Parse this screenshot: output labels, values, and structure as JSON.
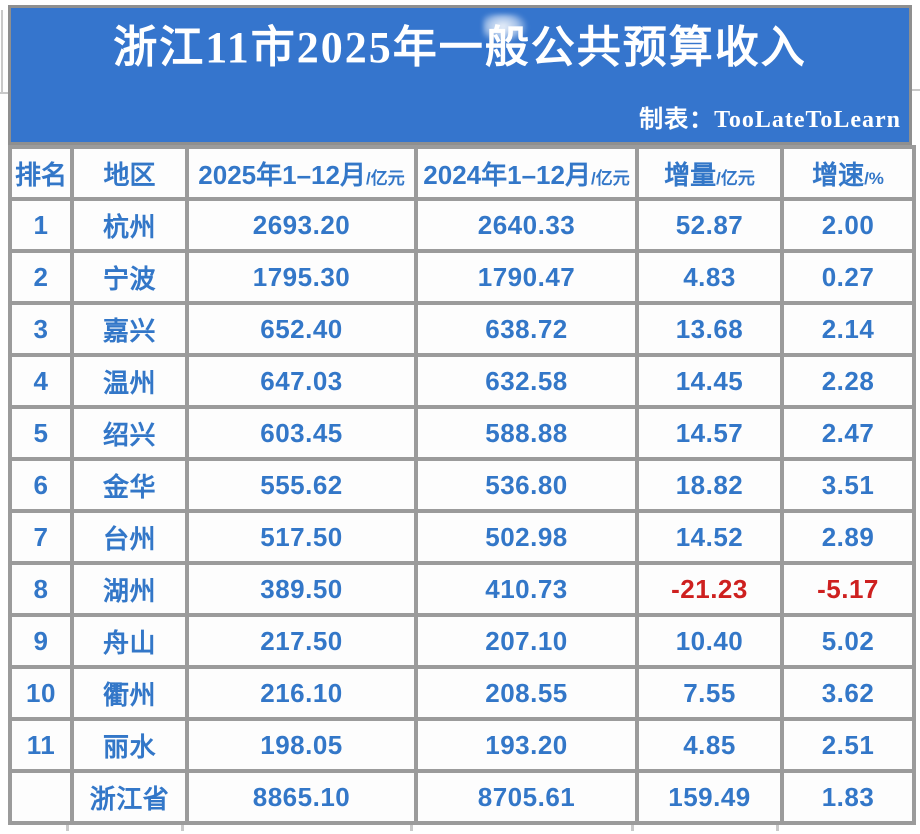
{
  "banner": {
    "title_prefix": "浙江11市2025年一",
    "title_smudged_char": "般",
    "title_suffix": "公共预算收入",
    "title_full": "浙江11市2025年一般公共预算收入",
    "credit": "制表：TooLateToLearn"
  },
  "table": {
    "columns": [
      {
        "label": "排名",
        "unit": ""
      },
      {
        "label": "地区",
        "unit": ""
      },
      {
        "label": "2025年1–12月",
        "unit": "/亿元"
      },
      {
        "label": "2024年1–12月",
        "unit": "/亿元"
      },
      {
        "label": "增量",
        "unit": "/亿元"
      },
      {
        "label": "增速",
        "unit": "/%"
      }
    ],
    "rows": [
      {
        "rank": "1",
        "region": "杭州",
        "v2025": "2693.20",
        "v2024": "2640.33",
        "delta": "52.87",
        "growth": "2.00"
      },
      {
        "rank": "2",
        "region": "宁波",
        "v2025": "1795.30",
        "v2024": "1790.47",
        "delta": "4.83",
        "growth": "0.27"
      },
      {
        "rank": "3",
        "region": "嘉兴",
        "v2025": "652.40",
        "v2024": "638.72",
        "delta": "13.68",
        "growth": "2.14"
      },
      {
        "rank": "4",
        "region": "温州",
        "v2025": "647.03",
        "v2024": "632.58",
        "delta": "14.45",
        "growth": "2.28"
      },
      {
        "rank": "5",
        "region": "绍兴",
        "v2025": "603.45",
        "v2024": "588.88",
        "delta": "14.57",
        "growth": "2.47"
      },
      {
        "rank": "6",
        "region": "金华",
        "v2025": "555.62",
        "v2024": "536.80",
        "delta": "18.82",
        "growth": "3.51"
      },
      {
        "rank": "7",
        "region": "台州",
        "v2025": "517.50",
        "v2024": "502.98",
        "delta": "14.52",
        "growth": "2.89"
      },
      {
        "rank": "8",
        "region": "湖州",
        "v2025": "389.50",
        "v2024": "410.73",
        "delta": "-21.23",
        "growth": "-5.17"
      },
      {
        "rank": "9",
        "region": "舟山",
        "v2025": "217.50",
        "v2024": "207.10",
        "delta": "10.40",
        "growth": "5.02"
      },
      {
        "rank": "10",
        "region": "衢州",
        "v2025": "216.10",
        "v2024": "208.55",
        "delta": "7.55",
        "growth": "3.62"
      },
      {
        "rank": "11",
        "region": "丽水",
        "v2025": "198.05",
        "v2024": "193.20",
        "delta": "4.85",
        "growth": "2.51"
      },
      {
        "rank": "",
        "region": "浙江省",
        "v2025": "8865.10",
        "v2024": "8705.61",
        "delta": "159.49",
        "growth": "1.83"
      }
    ]
  },
  "chart_data": {
    "type": "table",
    "title": "浙江11市2025年一般公共预算收入",
    "credit": "制表：TooLateToLearn",
    "columns": [
      "排名",
      "地区",
      "2025年1-12月/亿元",
      "2024年1-12月/亿元",
      "增量/亿元",
      "增速/%"
    ],
    "rows": [
      [
        1,
        "杭州",
        2693.2,
        2640.33,
        52.87,
        2.0
      ],
      [
        2,
        "宁波",
        1795.3,
        1790.47,
        4.83,
        0.27
      ],
      [
        3,
        "嘉兴",
        652.4,
        638.72,
        13.68,
        2.14
      ],
      [
        4,
        "温州",
        647.03,
        632.58,
        14.45,
        2.28
      ],
      [
        5,
        "绍兴",
        603.45,
        588.88,
        14.57,
        2.47
      ],
      [
        6,
        "金华",
        555.62,
        536.8,
        18.82,
        3.51
      ],
      [
        7,
        "台州",
        517.5,
        502.98,
        14.52,
        2.89
      ],
      [
        8,
        "湖州",
        389.5,
        410.73,
        -21.23,
        -5.17
      ],
      [
        9,
        "舟山",
        217.5,
        207.1,
        10.4,
        5.02
      ],
      [
        10,
        "衢州",
        216.1,
        208.55,
        7.55,
        3.62
      ],
      [
        11,
        "丽水",
        198.05,
        193.2,
        4.85,
        2.51
      ],
      [
        null,
        "浙江省",
        8865.1,
        8705.61,
        159.49,
        1.83
      ]
    ],
    "negative_rows": [
      "湖州"
    ]
  },
  "colors": {
    "banner_blue": "#3575CD",
    "text_blue": "#3377C8",
    "negative_red": "#CE201F",
    "border_gray": "#9B9B9B",
    "cell_bg": "#FDFDFD"
  }
}
